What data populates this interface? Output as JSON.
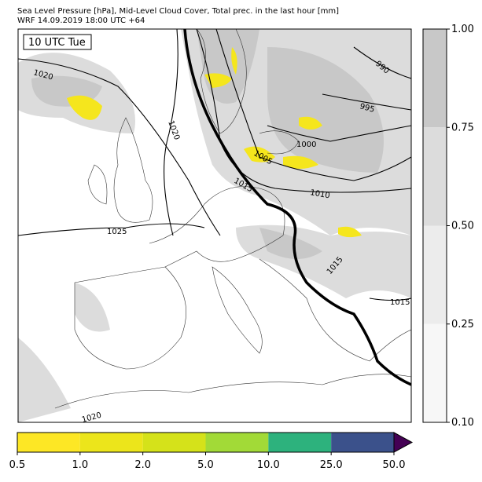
{
  "header": {
    "line1": "Sea Level Pressure [hPa], Mid-Level Cloud Cover, Total prec. in the last hour [mm]",
    "line2": "WRF 14.09.2019 18:00 UTC +64"
  },
  "map": {
    "time_label": "10 UTC Tue",
    "contour_labels": [
      "1020",
      "1020",
      "1025",
      "1015",
      "1010",
      "1005",
      "1000",
      "995",
      "990",
      "1015",
      "1015",
      "1020"
    ]
  },
  "cloud_colorbar": {
    "labels": [
      "1.00",
      "0.75",
      "0.50",
      "0.25",
      "0.10"
    ],
    "colors": [
      "#c8c8c8",
      "#dcdcdc",
      "#ececec",
      "#f7f7f7"
    ]
  },
  "precip_colorbar": {
    "labels": [
      "0.5",
      "1.0",
      "2.0",
      "5.0",
      "10.0",
      "25.0",
      "50.0"
    ],
    "colors": [
      "#fde725",
      "#ece51b",
      "#d5e21a",
      "#a2da37",
      "#2db27d",
      "#3b518b"
    ],
    "extend_color": "#440154"
  }
}
